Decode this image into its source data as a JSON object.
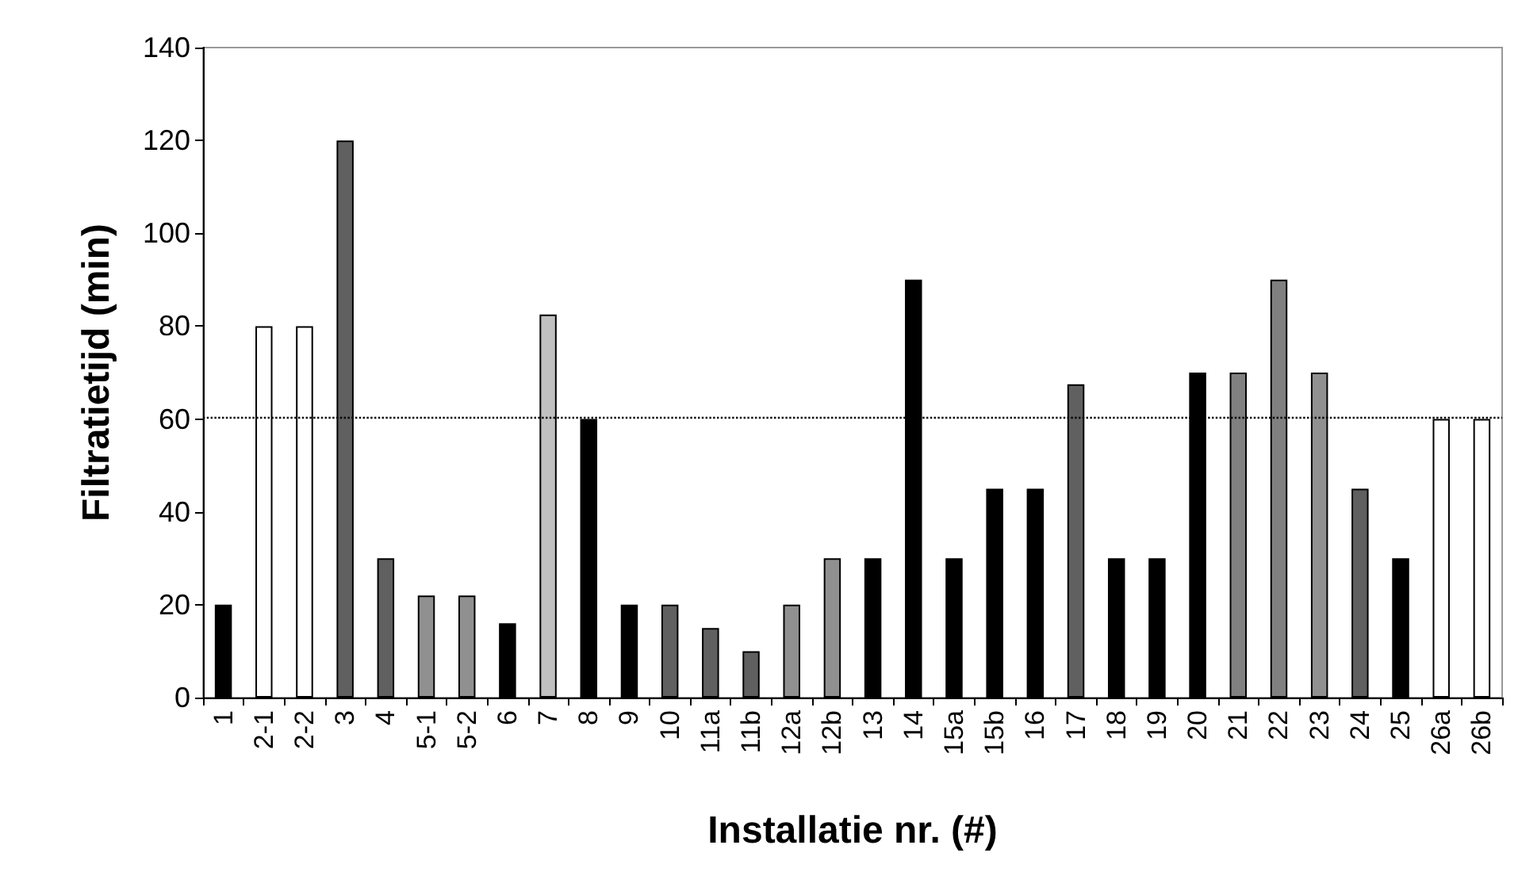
{
  "chart_data": {
    "type": "bar",
    "xlabel": "Installatie nr. (#)",
    "ylabel": "Filtratietijd (min)",
    "categories": [
      "1",
      "2-1",
      "2-2",
      "3",
      "4",
      "5-1",
      "5-2",
      "6",
      "7",
      "8",
      "9",
      "10",
      "11a",
      "11b",
      "12a",
      "12b",
      "13",
      "14",
      "15a",
      "15b",
      "16",
      "17",
      "18",
      "19",
      "20",
      "21",
      "22",
      "23",
      "24",
      "25",
      "26a",
      "26b"
    ],
    "values": [
      20,
      80,
      80,
      120,
      30,
      22,
      22,
      16,
      82.5,
      60,
      20,
      20,
      15,
      10,
      20,
      30,
      30,
      90,
      30,
      45,
      45,
      67.5,
      30,
      30,
      70,
      70,
      90,
      70,
      45,
      30,
      60,
      60
    ],
    "colors": [
      "#000000",
      "#ffffff",
      "#ffffff",
      "#606060",
      "#606060",
      "#909090",
      "#909090",
      "#000000",
      "#c0c0c0",
      "#000000",
      "#000000",
      "#606060",
      "#606060",
      "#606060",
      "#909090",
      "#909090",
      "#000000",
      "#000000",
      "#000000",
      "#000000",
      "#000000",
      "#606060",
      "#000000",
      "#000000",
      "#000000",
      "#808080",
      "#808080",
      "#909090",
      "#606060",
      "#000000",
      "#ffffff",
      "#ffffff"
    ],
    "ylim": [
      0,
      140
    ],
    "yticks": [
      0,
      20,
      40,
      60,
      80,
      100,
      120,
      140
    ],
    "grid": false,
    "ref_lines": [
      {
        "axis": "y",
        "value": 60.5,
        "color": "#000000",
        "line_style": "dotted"
      }
    ]
  }
}
